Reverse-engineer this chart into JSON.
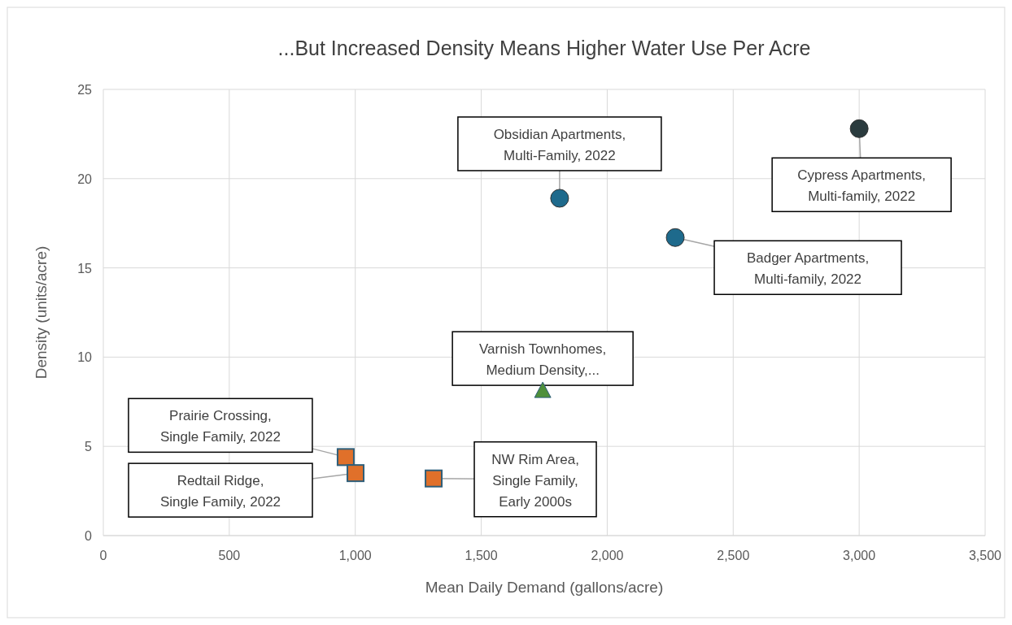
{
  "chart_data": {
    "type": "scatter",
    "title": "...But Increased Density Means Higher Water Use Per Acre",
    "xlabel": "Mean Daily Demand (gallons/acre)",
    "ylabel": "Density (units/acre)",
    "xlim": [
      0,
      3500
    ],
    "xticks": [
      0,
      500,
      {
        "value": 1000,
        "label": "1,000"
      },
      {
        "value": 1500,
        "label": "1,500"
      },
      {
        "value": 2000,
        "label": "2,000"
      },
      {
        "value": 2500,
        "label": "2,500"
      },
      {
        "value": 3000,
        "label": "3,000"
      },
      {
        "value": 3500,
        "label": "3,500"
      }
    ],
    "ylim": [
      0,
      25
    ],
    "yticks": [
      0,
      5,
      10,
      15,
      20,
      25
    ],
    "grid": true,
    "series": [
      {
        "marker": "circle",
        "x": [
          1811,
          3000,
          2270
        ],
        "values": [
          18.9,
          22.8,
          16.7
        ],
        "colors": [
          "#1e6a8c",
          "#2a3b3e",
          "#1e6a8c"
        ]
      },
      {
        "marker": "triangle",
        "x": [
          1744
        ],
        "values": [
          8.1
        ],
        "color": "#4e8f3a"
      },
      {
        "marker": "square",
        "x": [
          962,
          1001,
          1311
        ],
        "values": [
          4.4,
          3.5,
          3.2
        ],
        "color": "#e0702a"
      }
    ],
    "annotations": [
      {
        "text": "Obsidian Apartments, Multi-Family, 2022",
        "x": 1811,
        "y": 18.9
      },
      {
        "text": "Cypress Apartments, Multi-family, 2022",
        "x": 3000,
        "y": 22.8
      },
      {
        "text": "Badger Apartments, Multi-family, 2022",
        "x": 2270,
        "y": 16.7
      },
      {
        "text": "Varnish Townhomes, Medium Density,...",
        "x": 1744,
        "y": 8.1
      },
      {
        "text": "Prairie Crossing, Single Family, 2022",
        "x": 962,
        "y": 4.4
      },
      {
        "text": "Redtail Ridge, Single Family, 2022",
        "x": 1001,
        "y": 3.5
      },
      {
        "text": "NW Rim Area, Single Family, Early 2000s",
        "x": 1311,
        "y": 3.2
      }
    ]
  }
}
